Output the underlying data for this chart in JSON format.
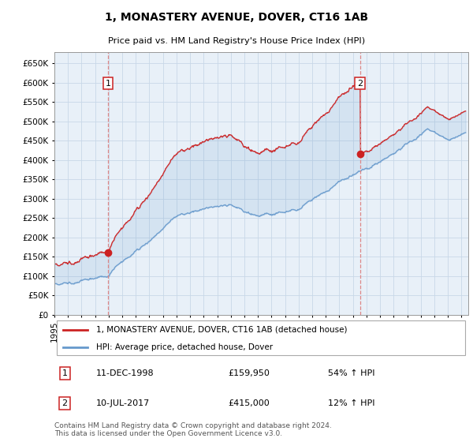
{
  "title": "1, MONASTERY AVENUE, DOVER, CT16 1AB",
  "subtitle": "Price paid vs. HM Land Registry's House Price Index (HPI)",
  "ylim": [
    0,
    680000
  ],
  "yticks": [
    0,
    50000,
    100000,
    150000,
    200000,
    250000,
    300000,
    350000,
    400000,
    450000,
    500000,
    550000,
    600000,
    650000
  ],
  "line1_color": "#cc2222",
  "line2_color": "#6699cc",
  "fill_color": "#d0e4f5",
  "marker_color": "#cc2222",
  "vline_color": "#dd8888",
  "sale1_date_num": 1998.95,
  "sale1_price": 159950,
  "sale2_date_num": 2017.53,
  "sale2_price": 415000,
  "legend_line1": "1, MONASTERY AVENUE, DOVER, CT16 1AB (detached house)",
  "legend_line2": "HPI: Average price, detached house, Dover",
  "table_row1_num": "1",
  "table_row1_date": "11-DEC-1998",
  "table_row1_price": "£159,950",
  "table_row1_hpi": "54% ↑ HPI",
  "table_row2_num": "2",
  "table_row2_date": "10-JUL-2017",
  "table_row2_price": "£415,000",
  "table_row2_hpi": "12% ↑ HPI",
  "footnote": "Contains HM Land Registry data © Crown copyright and database right 2024.\nThis data is licensed under the Open Government Licence v3.0.",
  "bg_color": "#ffffff",
  "chart_bg_color": "#e8f0f8",
  "grid_color": "#c8d8e8",
  "xmin": 1995,
  "xmax": 2025.5
}
